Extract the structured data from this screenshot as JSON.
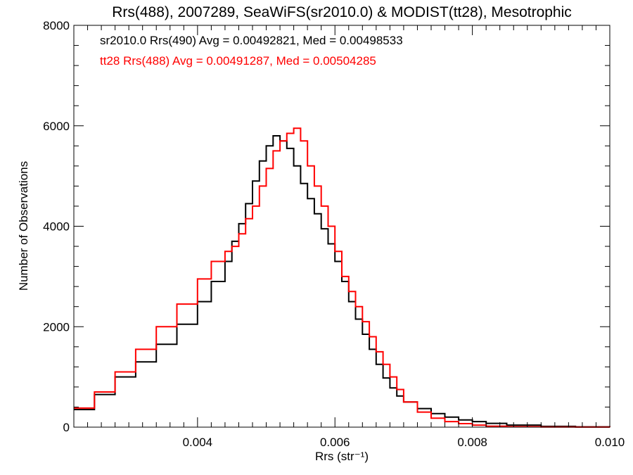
{
  "chart_data": {
    "type": "line",
    "title": "Rrs(488), 2007289, SeaWiFS(sr2010.0) & MODIST(tt28), Mesotrophic",
    "xlabel": "Rrs (str⁻¹)",
    "ylabel": "Number of Observations",
    "xlim": [
      0.0022,
      0.01
    ],
    "ylim": [
      0,
      8000
    ],
    "x_ticks": [
      0.004,
      0.006,
      0.008,
      0.01
    ],
    "x_tick_labels": [
      "0.004",
      "0.006",
      "0.008",
      "0.010"
    ],
    "y_ticks": [
      0,
      2000,
      4000,
      6000,
      8000
    ],
    "y_tick_labels": [
      "0",
      "2000",
      "4000",
      "6000",
      "8000"
    ],
    "grid": false,
    "annotations": [
      {
        "text": "sr2010.0 Rrs(490) Avg = 0.00492821, Med = 0.00498533",
        "color": "#000000"
      },
      {
        "text": "tt28 Rrs(488) Avg = 0.00491287, Med = 0.00504285",
        "color": "#ff0000"
      }
    ],
    "series": [
      {
        "color": "#000000",
        "x": [
          0.0022,
          0.0025,
          0.0028,
          0.0031,
          0.0034,
          0.0037,
          0.004,
          0.0042,
          0.0044,
          0.0045,
          0.0046,
          0.0047,
          0.0048,
          0.0049,
          0.005,
          0.0051,
          0.0052,
          0.0053,
          0.0054,
          0.0055,
          0.0056,
          0.0057,
          0.0058,
          0.0059,
          0.006,
          0.0061,
          0.0062,
          0.0063,
          0.0064,
          0.0065,
          0.0066,
          0.0067,
          0.0068,
          0.0069,
          0.007,
          0.0072,
          0.0074,
          0.0076,
          0.0078,
          0.008,
          0.0082,
          0.0085,
          0.009,
          0.0095,
          0.01
        ],
        "y": [
          350,
          650,
          1000,
          1300,
          1650,
          2050,
          2500,
          2900,
          3300,
          3700,
          4050,
          4450,
          4900,
          5300,
          5600,
          5800,
          5700,
          5550,
          5200,
          4850,
          4550,
          4250,
          3950,
          3650,
          3300,
          2900,
          2500,
          2150,
          1850,
          1550,
          1250,
          980,
          780,
          620,
          500,
          370,
          270,
          200,
          145,
          110,
          75,
          40,
          15,
          5,
          0
        ]
      },
      {
        "color": "#ff0000",
        "x": [
          0.0022,
          0.0025,
          0.0028,
          0.0031,
          0.0034,
          0.0037,
          0.004,
          0.0042,
          0.0044,
          0.0045,
          0.0046,
          0.0047,
          0.0048,
          0.0049,
          0.005,
          0.0051,
          0.0052,
          0.0053,
          0.0054,
          0.0055,
          0.0056,
          0.0057,
          0.0058,
          0.0059,
          0.006,
          0.0061,
          0.0062,
          0.0063,
          0.0064,
          0.0065,
          0.0066,
          0.0067,
          0.0068,
          0.0069,
          0.007,
          0.0072,
          0.0074,
          0.0076,
          0.0078,
          0.008,
          0.0082,
          0.0085,
          0.009,
          0.0095,
          0.01
        ],
        "y": [
          380,
          700,
          1100,
          1550,
          2000,
          2450,
          2950,
          3300,
          3500,
          3600,
          3850,
          4150,
          4400,
          4800,
          5150,
          5500,
          5700,
          5850,
          5950,
          5700,
          5200,
          4800,
          4400,
          4000,
          3500,
          3000,
          2700,
          2400,
          2100,
          1800,
          1500,
          1250,
          1000,
          750,
          500,
          300,
          180,
          110,
          70,
          40,
          20,
          8,
          3,
          1,
          0
        ]
      }
    ]
  }
}
